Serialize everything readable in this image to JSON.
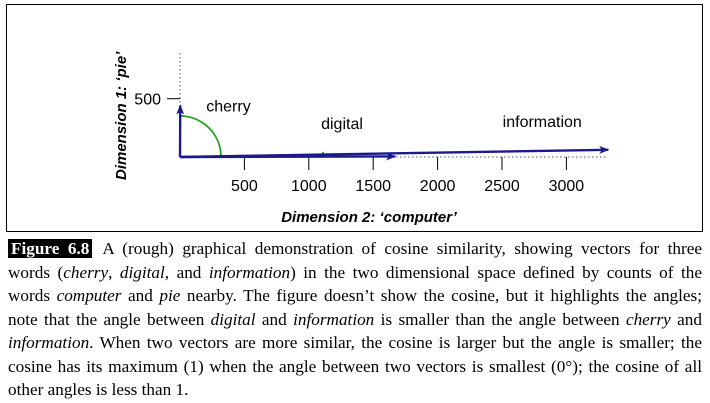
{
  "figure": {
    "ylabel": "Dimension 1: ‘pie’",
    "xlabel": "Dimension 2: ‘computer’"
  },
  "chart_data": {
    "type": "scatter",
    "title": "",
    "xlabel": "Dimension 2: ‘computer’",
    "ylabel": "Dimension 1: ‘pie’",
    "xlim": [
      0,
      3300
    ],
    "ylim": [
      0,
      600
    ],
    "x_ticks": [
      500,
      1000,
      1500,
      2000,
      2500,
      3000
    ],
    "y_ticks": [
      500
    ],
    "series": [
      {
        "label": "cherry",
        "x": 2,
        "y": 442
      },
      {
        "label": "digital",
        "x": 1670,
        "y": 5
      },
      {
        "label": "information",
        "x": 3325,
        "y": 62
      }
    ],
    "colors": {
      "vectors": "#1a1a8c",
      "arc_cherry": "#1aa31a",
      "arc_digital": "#1aa31a"
    }
  },
  "caption": {
    "label": "Figure 6.8",
    "parts": [
      {
        "t": "A (rough) graphical demonstration of cosine similarity, showing vectors for three words (",
        "i": false
      },
      {
        "t": "cherry",
        "i": true
      },
      {
        "t": ", ",
        "i": false
      },
      {
        "t": "digital",
        "i": true
      },
      {
        "t": ", and ",
        "i": false
      },
      {
        "t": "information",
        "i": true
      },
      {
        "t": ") in the two dimensional space defined by counts of the words ",
        "i": false
      },
      {
        "t": "computer",
        "i": true
      },
      {
        "t": " and ",
        "i": false
      },
      {
        "t": "pie",
        "i": true
      },
      {
        "t": " nearby. The figure doesn’t show the cosine, but it highlights the angles; note that the angle between ",
        "i": false
      },
      {
        "t": "digital",
        "i": true
      },
      {
        "t": " and ",
        "i": false
      },
      {
        "t": "information",
        "i": true
      },
      {
        "t": " is smaller than the angle between ",
        "i": false
      },
      {
        "t": "cherry",
        "i": true
      },
      {
        "t": " and ",
        "i": false
      },
      {
        "t": "information",
        "i": true
      },
      {
        "t": ". When two vectors are more similar, the cosine is larger but the angle is smaller; the cosine has its maximum (1) when the angle between two vectors is smallest (0°); the cosine of all other angles is less than 1.",
        "i": false
      }
    ]
  }
}
